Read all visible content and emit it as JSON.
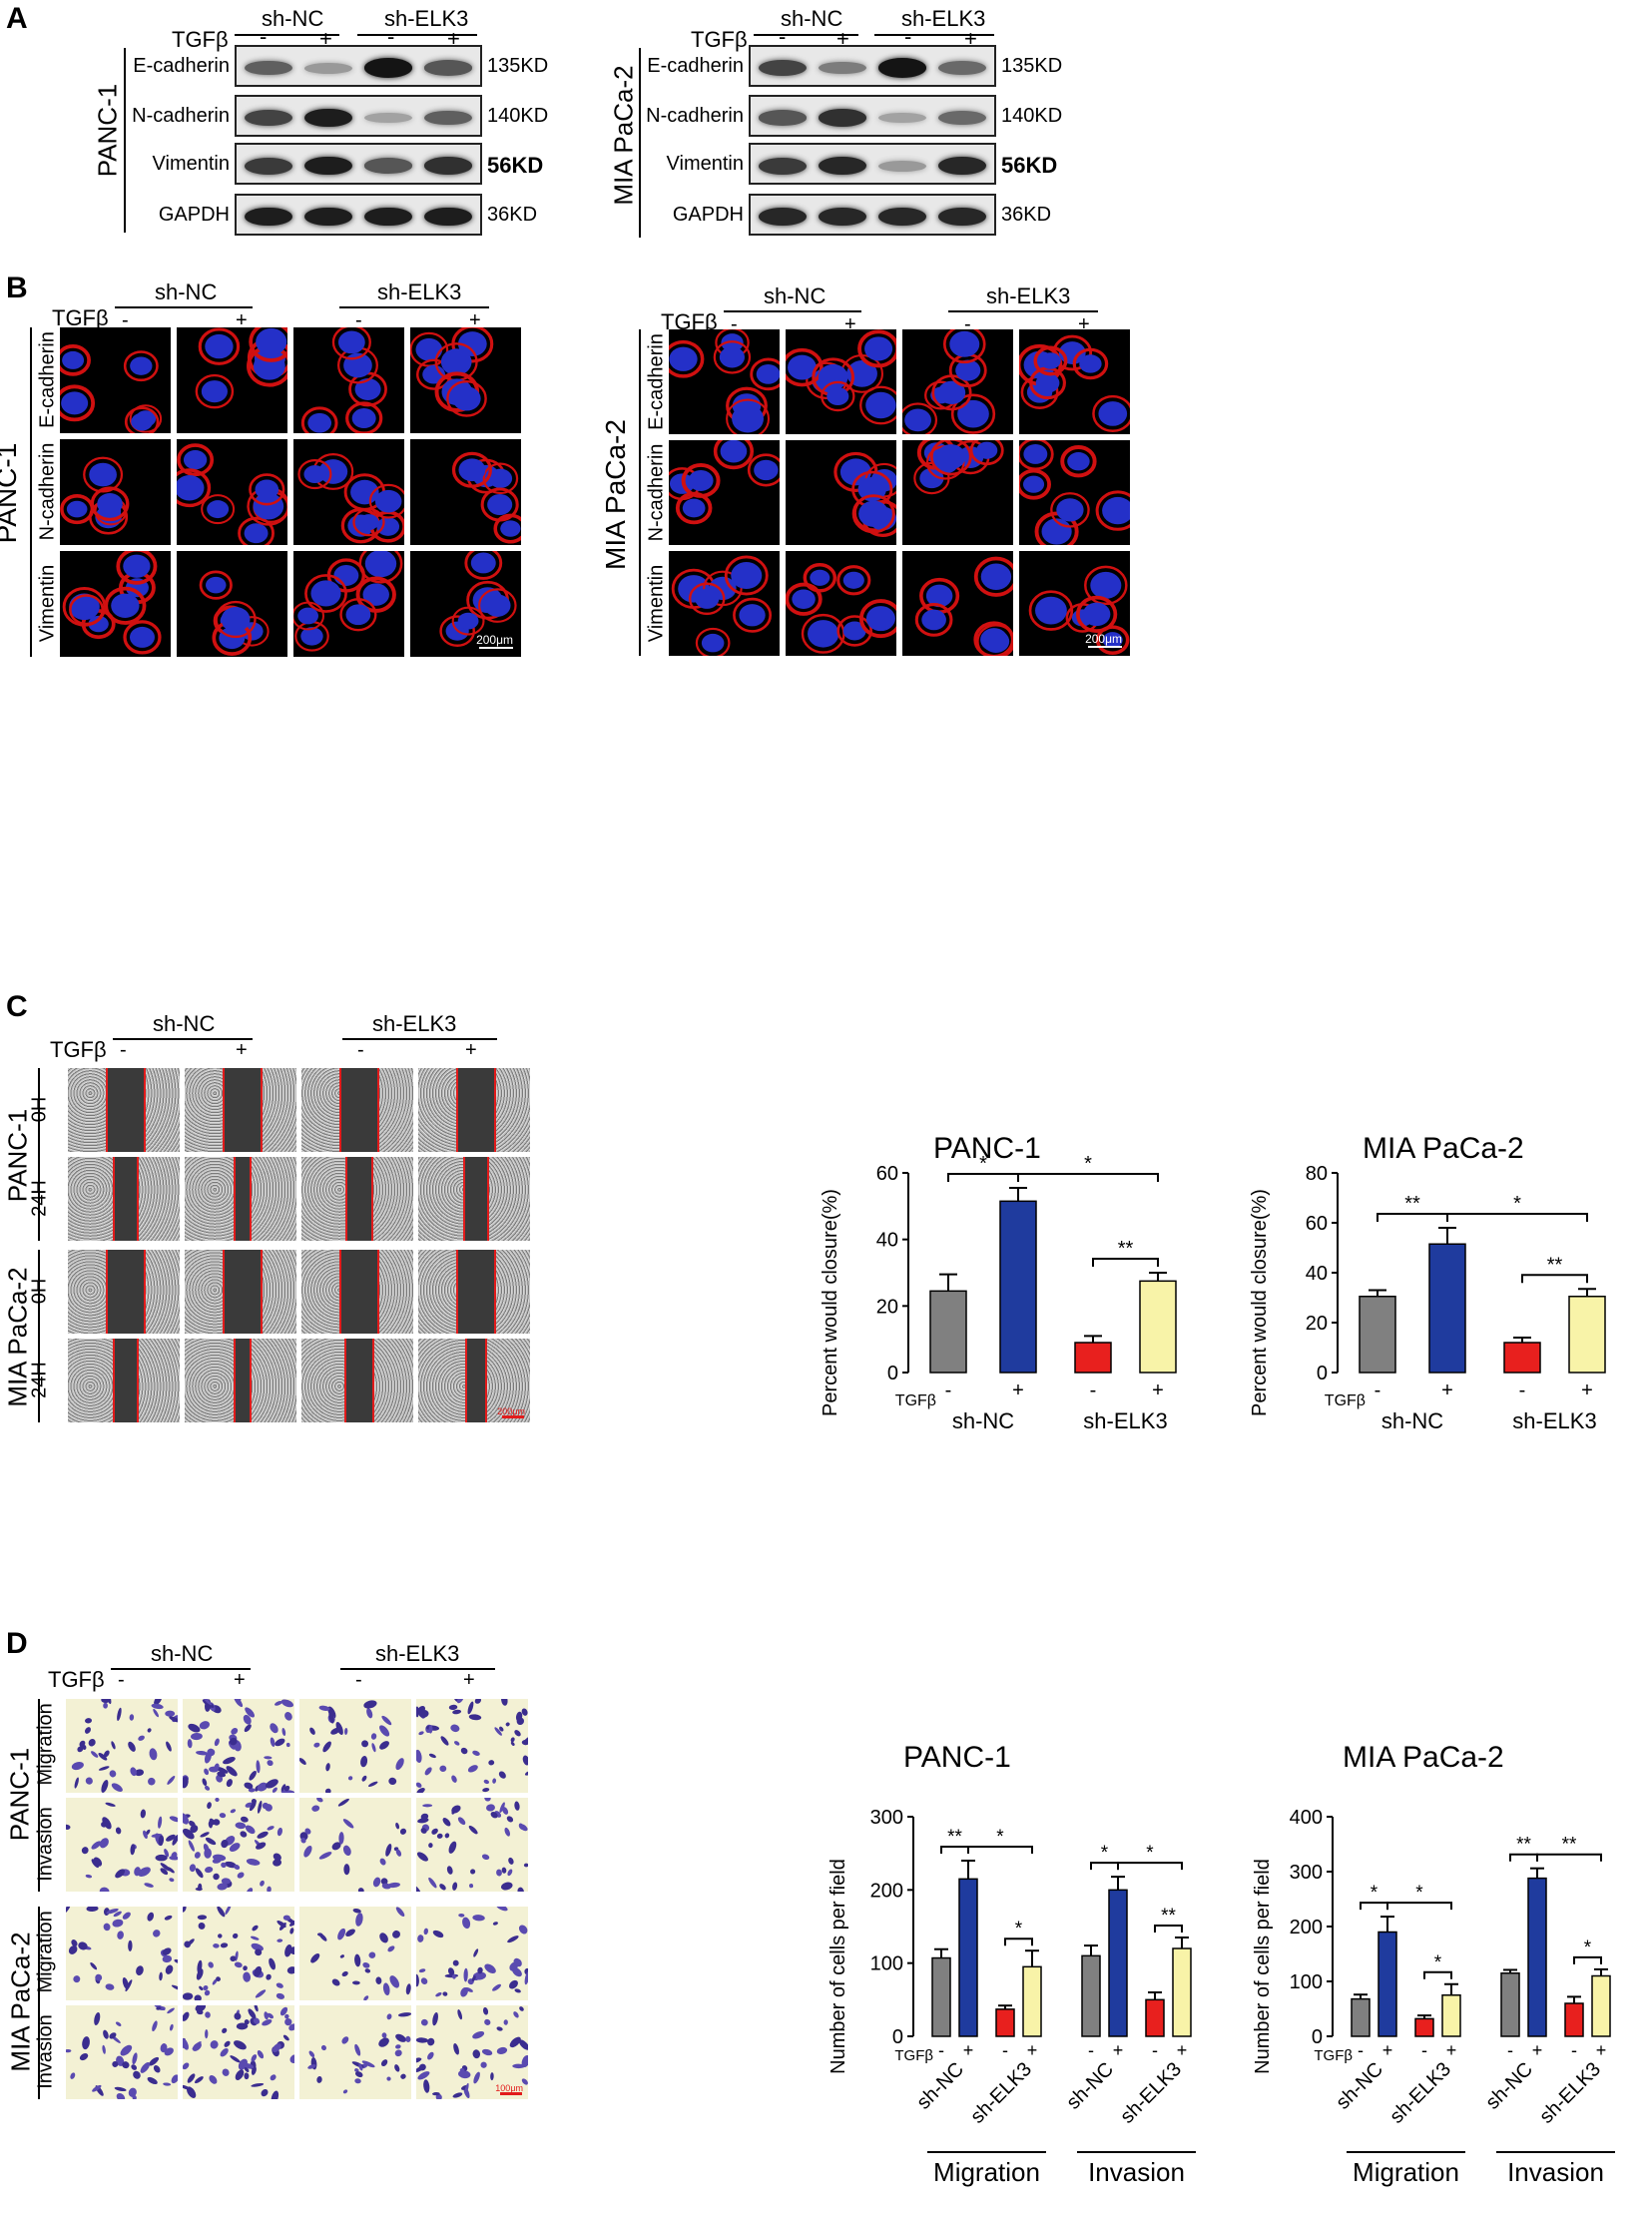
{
  "panels": {
    "A": "A",
    "B": "B",
    "C": "C",
    "D": "D"
  },
  "groups": {
    "sh_nc": "sh-NC",
    "sh_elk3": "sh-ELK3"
  },
  "tgfb": {
    "label": "TGFβ",
    "minus": "-",
    "plus": "+"
  },
  "cell_lines": {
    "panc1": "PANC-1",
    "mia": "MIA PaCa-2"
  },
  "western": {
    "proteins": [
      "E-cadherin",
      "N-cadherin",
      "Vimentin",
      "GAPDH"
    ],
    "sizes": [
      "135KD",
      "140KD",
      "56KD",
      "36KD"
    ]
  },
  "if_rows": [
    "E-cadherin",
    "N-cadherin",
    "Vimentin"
  ],
  "scale_200": "200μm",
  "wound_rows": [
    "0H",
    "24H"
  ],
  "wound_scale": "200μm",
  "transwell_rows": [
    "Migration",
    "Invasion"
  ],
  "transwell_scale": "100μm",
  "chart_data": [
    {
      "type": "bar",
      "title": "PANC-1",
      "ylabel": "Percent would closure(%)",
      "ylim": [
        0,
        60
      ],
      "yticks": [
        0,
        20,
        40,
        60
      ],
      "categories": [
        "sh-NC -",
        "sh-NC +",
        "sh-ELK3 -",
        "sh-ELK3 +"
      ],
      "values": [
        24.5,
        51.5,
        9.0,
        27.5
      ],
      "errors": [
        5,
        4,
        2,
        2.5
      ],
      "colors": [
        "#808080",
        "#1f3b9e",
        "#e8201e",
        "#f8f3a8"
      ],
      "group_labels": [
        "sh-NC",
        "sh-ELK3"
      ],
      "significance": [
        [
          "*",
          0,
          1
        ],
        [
          "*",
          1,
          3
        ],
        [
          "**",
          2,
          3
        ]
      ]
    },
    {
      "type": "bar",
      "title": "MIA PaCa-2",
      "ylabel": "Percent would closure(%)",
      "ylim": [
        0,
        80
      ],
      "yticks": [
        0,
        20,
        40,
        60,
        80
      ],
      "categories": [
        "sh-NC -",
        "sh-NC +",
        "sh-ELK3 -",
        "sh-ELK3 +"
      ],
      "values": [
        30.5,
        51.5,
        12.0,
        30.5
      ],
      "errors": [
        2.5,
        6.5,
        2.0,
        3.0
      ],
      "colors": [
        "#808080",
        "#1f3b9e",
        "#e8201e",
        "#f8f3a8"
      ],
      "group_labels": [
        "sh-NC",
        "sh-ELK3"
      ],
      "significance": [
        [
          "**",
          0,
          1
        ],
        [
          "*",
          1,
          3
        ],
        [
          "**",
          2,
          3
        ]
      ]
    },
    {
      "type": "bar",
      "title": "PANC-1",
      "ylabel": "Number of cells per field",
      "ylim": [
        0,
        300
      ],
      "yticks": [
        0,
        100,
        200,
        300
      ],
      "sections": [
        "Migration",
        "Invasion"
      ],
      "group_labels": [
        "sh-NC",
        "sh-ELK3"
      ],
      "series": [
        {
          "section": "Migration",
          "values": [
            107,
            215,
            37,
            95
          ],
          "errors": [
            12,
            25,
            5,
            22
          ]
        },
        {
          "section": "Invasion",
          "values": [
            110,
            200,
            50,
            120
          ],
          "errors": [
            14,
            18,
            10,
            15
          ]
        }
      ],
      "colors": [
        "#808080",
        "#1f3b9e",
        "#e8201e",
        "#f8f3a8"
      ],
      "significance": [
        [
          "**",
          "Migration",
          0,
          1
        ],
        [
          "*",
          "Migration",
          1,
          3
        ],
        [
          "*",
          "Migration",
          2,
          3
        ],
        [
          "*",
          "Invasion",
          0,
          1
        ],
        [
          "*",
          "Invasion",
          1,
          3
        ],
        [
          "**",
          "Invasion",
          2,
          3
        ]
      ]
    },
    {
      "type": "bar",
      "title": "MIA PaCa-2",
      "ylabel": "Number of cells per field",
      "ylim": [
        0,
        400
      ],
      "yticks": [
        0,
        100,
        200,
        300,
        400
      ],
      "sections": [
        "Migration",
        "Invasion"
      ],
      "group_labels": [
        "sh-NC",
        "sh-ELK3"
      ],
      "series": [
        {
          "section": "Migration",
          "values": [
            68,
            190,
            32,
            75
          ],
          "errors": [
            8,
            28,
            6,
            20
          ]
        },
        {
          "section": "Invasion",
          "values": [
            115,
            288,
            60,
            110
          ],
          "errors": [
            6,
            18,
            12,
            12
          ]
        }
      ],
      "colors": [
        "#808080",
        "#1f3b9e",
        "#e8201e",
        "#f8f3a8"
      ],
      "significance": [
        [
          "*",
          "Migration",
          0,
          1
        ],
        [
          "*",
          "Migration",
          1,
          3
        ],
        [
          "*",
          "Migration",
          2,
          3
        ],
        [
          "**",
          "Invasion",
          0,
          1
        ],
        [
          "**",
          "Invasion",
          1,
          3
        ],
        [
          "*",
          "Invasion",
          2,
          3
        ]
      ]
    }
  ]
}
